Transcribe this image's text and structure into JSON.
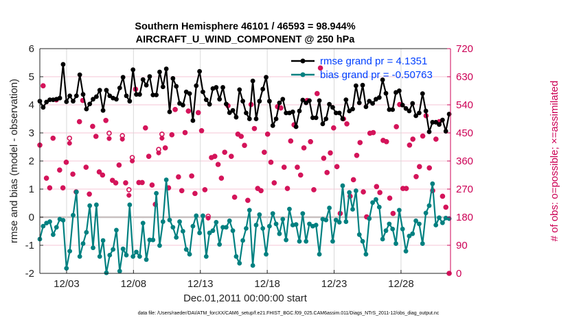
{
  "chart_data": {
    "type": "line",
    "title": "Southern Hemisphere 46101 / 46593 = 98.944%",
    "subtitle": "AIRCRAFT_U_WIND_COMPONENT @ 250 hPa",
    "xlabel": "Dec.01,2011 00:00:00 start",
    "ylabel": "rmse and bias (model - observation)",
    "ylabel_right": "# of obs: o=possible; ×=assimilated",
    "footnote": "data file: /Users/raeder/DAI/ATM_forcXX/CAM6_setup/f.e21.FHIST_BGC.f09_025.CAM6assim.011/Diags_NTrS_2011-12/obs_diag_output.nc",
    "x_ticks": [
      {
        "day": 2,
        "label": "12/03"
      },
      {
        "day": 7,
        "label": "12/08"
      },
      {
        "day": 12,
        "label": "12/13"
      },
      {
        "day": 17,
        "label": "12/18"
      },
      {
        "day": 22,
        "label": "12/23"
      },
      {
        "day": 27,
        "label": "12/28"
      }
    ],
    "xlim_days": [
      0,
      30.7
    ],
    "ylim": [
      -2,
      6
    ],
    "y_ticks": [
      "6",
      "5",
      "4",
      "3",
      "2",
      "1",
      "0",
      "-1",
      "-2"
    ],
    "ylim_right": [
      0,
      720
    ],
    "y_ticks_right": [
      "720",
      "630",
      "540",
      "450",
      "360",
      "270",
      "180",
      "90",
      "0"
    ],
    "grid": true,
    "legend_placement": "top-right",
    "colors": {
      "rmse": "#000000",
      "bias": "#008080",
      "obs": "#d4145a",
      "legend_text": "#0040ff",
      "zero_line": "#c8c0c0",
      "grid_h": "#f5c6d6",
      "grid_v": "#d8d8d8"
    },
    "series": [
      {
        "name": "rmse grand pr = 4.1351",
        "axis": "left",
        "values": [
          4.13,
          3.91,
          4.1,
          4.18,
          4.18,
          4.2,
          4.24,
          5.44,
          4.11,
          4.32,
          4.13,
          4.32,
          5.07,
          4.37,
          3.85,
          4.03,
          4.2,
          4.29,
          4.52,
          3.8,
          4.52,
          4.32,
          4.24,
          4.2,
          4.6,
          4.98,
          4.32,
          4.13,
          5.25,
          4.37,
          4.37,
          4.9,
          4.7,
          5.01,
          4.35,
          4.35,
          5.17,
          4.64,
          5.28,
          3.75,
          4.94,
          4.66,
          4.05,
          3.99,
          4.46,
          4.4,
          3.44,
          4.68,
          5.19,
          4.46,
          4.18,
          4.02,
          4.58,
          4.62,
          4.2,
          4.62,
          4.03,
          3.72,
          3.8,
          3.56,
          4.54,
          4.13,
          3.71,
          3.5,
          4.85,
          3.5,
          4.13,
          4.56,
          4.98,
          4.13,
          3.26,
          3.5,
          4.07,
          4.2,
          3.71,
          3.71,
          3.75,
          3.22,
          3.78,
          4.17,
          4.07,
          4.15,
          3.54,
          3.54,
          4.15,
          3.32,
          3.5,
          4.02,
          3.91,
          3.71,
          3.71,
          3.5,
          4.18,
          3.78,
          3.85,
          4.68,
          4.07,
          4.7,
          3.93,
          4.13,
          4.05,
          4.2,
          4.26,
          4.89,
          4.41,
          3.83,
          3.83,
          4.44,
          4.5,
          3.99,
          3.87,
          3.78,
          4.05,
          3.61,
          3.71,
          4.4,
          3.78,
          3.04,
          3.38,
          3.38,
          3.3,
          3.46,
          3.06,
          3.67
        ]
      },
      {
        "name": "bias grand pr = -0.50763",
        "axis": "left",
        "values": [
          -0.78,
          -0.32,
          -0.21,
          -0.16,
          -0.62,
          -0.36,
          -0.07,
          -0.11,
          -1.82,
          -1.21,
          0.07,
          0.9,
          -1.4,
          -0.94,
          -0.54,
          0.41,
          -1.09,
          0.44,
          -1.4,
          -0.83,
          -1.98,
          -1.35,
          -1.15,
          -0.46,
          -1.92,
          -1.13,
          -1.35,
          0.44,
          -1.4,
          -1.24,
          -1.4,
          -0.21,
          -1.51,
          -0.81,
          -0.81,
          0.85,
          -1.01,
          -0.16,
          1.33,
          -0.1,
          -0.36,
          -0.72,
          -0.16,
          -0.5,
          -1.15,
          -1.32,
          -0.32,
          0.05,
          -0.56,
          0.05,
          -1.4,
          -0.56,
          -0.48,
          -0.18,
          -0.97,
          -0.36,
          -0.36,
          -0.13,
          -0.48,
          -1.4,
          -1.64,
          -0.83,
          -0.4,
          0.25,
          -1.72,
          -0.28,
          0.09,
          -0.4,
          -1.32,
          -0.32,
          0.13,
          -0.24,
          -0.59,
          -0.07,
          -0.81,
          0.29,
          -0.28,
          -0.26,
          -0.86,
          0.13,
          -0.86,
          -0.24,
          -0.32,
          -0.28,
          -1.32,
          -0.07,
          -0.1,
          0.33,
          -0.86,
          -0.1,
          -0.18,
          1.12,
          -0.16,
          0.88,
          0.28,
          0.94,
          -0.62,
          -0.86,
          -1.32,
          -0.05,
          0.52,
          0.63,
          0.36,
          -0.78,
          -0.48,
          -0.24,
          -0.42,
          -0.94,
          0.25,
          -0.42,
          -1.21,
          -0.67,
          -0.59,
          -0.13,
          -0.24,
          -0.94,
          0.15,
          0.41,
          1.19,
          -0.28,
          -0.02,
          -0.2,
          -0.03,
          -0.05
        ]
      },
      {
        "name": "obs possible",
        "axis": "right",
        "marker": "o",
        "values": [
          411,
          601,
          305,
          274,
          433,
          556,
          331,
          274,
          356,
          433,
          318,
          261,
          486,
          554,
          340,
          254,
          471,
          439,
          325,
          315,
          490,
          449,
          298,
          290,
          347,
          441,
          290,
          268,
          371,
          590,
          291,
          291,
          466,
          375,
          283,
          221,
          397,
          446,
          402,
          274,
          444,
          525,
          309,
          265,
          451,
          520,
          312,
          256,
          515,
          457,
          268,
          183,
          371,
          375,
          349,
          305,
          388,
          537,
          375,
          244,
          446,
          439,
          410,
          234,
          541,
          464,
          272,
          265,
          388,
          446,
          356,
          290,
          534,
          530,
          340,
          272,
          424,
          476,
          340,
          315,
          402,
          554,
          422,
          268,
          576,
          658,
          369,
          323,
          386,
          466,
          342,
          192,
          495,
          479,
          247,
          300,
          378,
          419,
          261,
          181,
          449,
          451,
          278,
          259,
          426,
          422,
          241,
          192,
          470,
          541,
          272,
          272,
          411,
          430,
          310,
          342,
          440,
          505,
          338,
          265,
          430,
          486,
          247,
          212,
          0
        ]
      },
      {
        "name": "obs assimilated",
        "axis": "right",
        "marker": "*",
        "values": [
          411,
          601,
          305,
          274,
          433,
          556,
          331,
          274,
          356,
          417,
          318,
          261,
          486,
          554,
          340,
          254,
          471,
          439,
          325,
          315,
          490,
          432,
          298,
          290,
          347,
          430,
          290,
          250,
          360,
          590,
          291,
          291,
          466,
          375,
          283,
          221,
          386,
          433,
          402,
          274,
          444,
          525,
          309,
          265,
          451,
          520,
          312,
          256,
          515,
          457,
          268,
          177,
          371,
          375,
          349,
          305,
          388,
          537,
          375,
          244,
          446,
          439,
          410,
          234,
          541,
          464,
          272,
          265,
          388,
          446,
          356,
          290,
          534,
          530,
          340,
          272,
          424,
          476,
          340,
          315,
          402,
          554,
          422,
          268,
          576,
          658,
          369,
          323,
          386,
          466,
          342,
          192,
          495,
          479,
          247,
          300,
          378,
          419,
          261,
          181,
          449,
          451,
          278,
          259,
          426,
          422,
          241,
          192,
          470,
          541,
          272,
          272,
          411,
          430,
          310,
          342,
          440,
          505,
          338,
          265,
          430,
          486,
          247,
          212,
          0
        ]
      }
    ]
  }
}
